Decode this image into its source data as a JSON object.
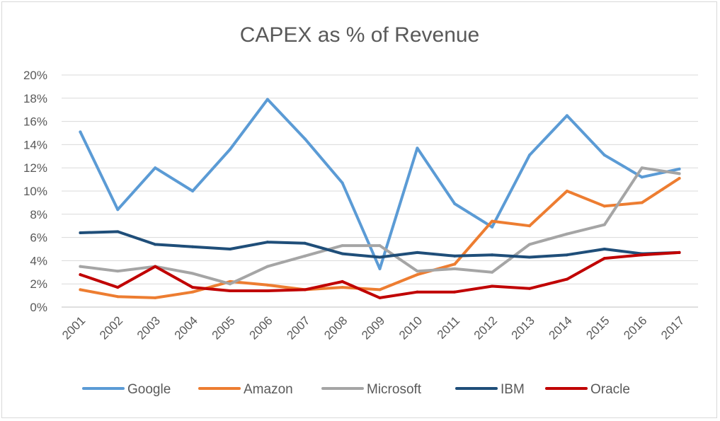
{
  "chart_data": {
    "type": "line",
    "title": "CAPEX as % of Revenue",
    "xlabel": "",
    "ylabel": "",
    "ylim": [
      0,
      20
    ],
    "y_ticks": [
      "0%",
      "2%",
      "4%",
      "6%",
      "8%",
      "10%",
      "12%",
      "14%",
      "16%",
      "18%",
      "20%"
    ],
    "x": [
      "2001",
      "2002",
      "2003",
      "2004",
      "2005",
      "2006",
      "2007",
      "2008",
      "2009",
      "2010",
      "2011",
      "2012",
      "2013",
      "2014",
      "2015",
      "2016",
      "2017"
    ],
    "grid": true,
    "legend_position": "bottom",
    "series": [
      {
        "name": "Google",
        "color": "#5B9BD5",
        "values": [
          15.1,
          8.4,
          12.0,
          10.0,
          13.6,
          17.9,
          14.5,
          10.7,
          3.3,
          13.7,
          8.9,
          6.9,
          13.1,
          16.5,
          13.1,
          11.2,
          11.9
        ]
      },
      {
        "name": "Amazon",
        "color": "#ED7D31",
        "values": [
          1.5,
          0.9,
          0.8,
          1.3,
          2.2,
          1.9,
          1.5,
          1.7,
          1.5,
          2.8,
          3.7,
          7.4,
          7.0,
          10.0,
          8.7,
          9.0,
          11.1
        ]
      },
      {
        "name": "Microsoft",
        "color": "#A5A5A5",
        "values": [
          3.5,
          3.1,
          3.5,
          2.9,
          2.0,
          3.5,
          4.4,
          5.3,
          5.3,
          3.1,
          3.3,
          3.0,
          5.4,
          6.3,
          7.1,
          12.0,
          11.5
        ]
      },
      {
        "name": "IBM",
        "color": "#1F4E79",
        "values": [
          6.4,
          6.5,
          5.4,
          5.2,
          5.0,
          5.6,
          5.5,
          4.6,
          4.3,
          4.7,
          4.4,
          4.5,
          4.3,
          4.5,
          5.0,
          4.6,
          4.7
        ]
      },
      {
        "name": "Oracle",
        "color": "#C00000",
        "values": [
          2.8,
          1.7,
          3.5,
          1.7,
          1.4,
          1.4,
          1.5,
          2.2,
          0.8,
          1.3,
          1.3,
          1.8,
          1.6,
          2.4,
          4.2,
          4.5,
          4.7
        ]
      }
    ]
  }
}
